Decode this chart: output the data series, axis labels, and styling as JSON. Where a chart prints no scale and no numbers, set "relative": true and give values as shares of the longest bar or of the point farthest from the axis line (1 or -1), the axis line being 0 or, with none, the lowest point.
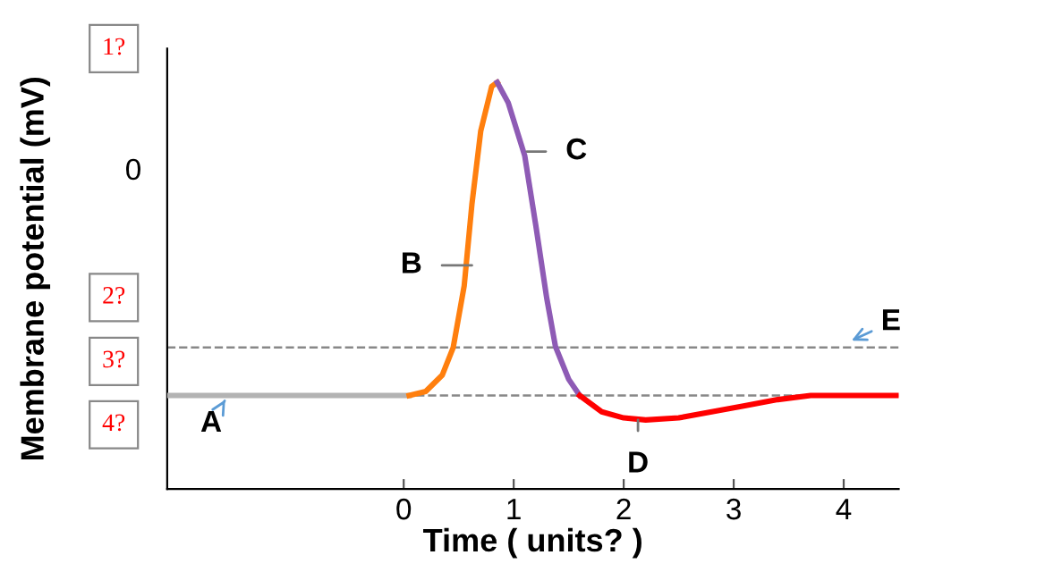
{
  "chart_data": {
    "type": "line",
    "relative": true,
    "xlabel": "Time ( units? )",
    "ylabel": "Membrane potential (mV)",
    "xlim": [
      -2.15,
      4.5
    ],
    "xticks": [
      0,
      1,
      2,
      3,
      4
    ],
    "grid": false,
    "legend": false,
    "line_style": "solid",
    "series": [
      {
        "color": "#b3b3b3",
        "x": [
          -2.15,
          0.05
        ],
        "values": [
          0.23,
          0.23
        ]
      },
      {
        "color": "#ff7f0e",
        "x": [
          0.05,
          0.2,
          0.35,
          0.45,
          0.55,
          0.62,
          0.7,
          0.8,
          0.85
        ],
        "values": [
          0.23,
          0.24,
          0.28,
          0.348,
          0.5,
          0.7,
          0.88,
          0.99,
          1.0
        ]
      },
      {
        "color": "#8e5bb5",
        "x": [
          0.85,
          0.95,
          1.1,
          1.2,
          1.3,
          1.38,
          1.5,
          1.6
        ],
        "values": [
          1.0,
          0.95,
          0.82,
          0.65,
          0.47,
          0.35,
          0.27,
          0.23
        ]
      },
      {
        "color": "#ff0000",
        "x": [
          1.6,
          1.8,
          2.0,
          2.2,
          2.5,
          2.8,
          3.1,
          3.4,
          3.7,
          4.5
        ],
        "values": [
          0.23,
          0.19,
          0.175,
          0.17,
          0.175,
          0.19,
          0.205,
          0.22,
          0.23,
          0.23
        ]
      }
    ],
    "ref_lines": [
      {
        "axis": "y",
        "value": 0.348,
        "label": null,
        "color": "#888888",
        "line_style": "dashed"
      },
      {
        "axis": "y",
        "value": 0.23,
        "label": null,
        "color": "#888888",
        "line_style": "dashed"
      }
    ],
    "annotations": [
      {
        "text": "A",
        "x": -1.6,
        "y": 0.23
      },
      {
        "text": "B",
        "x": 0.62,
        "y": 0.55
      },
      {
        "text": "C",
        "x": 1.12,
        "y": 0.83
      },
      {
        "text": "D",
        "x": 2.13,
        "y": 0.17
      },
      {
        "text": "E",
        "x": 4.03,
        "y": 0.36
      },
      "0",
      "1?",
      "2?",
      "3?",
      "4?"
    ]
  }
}
